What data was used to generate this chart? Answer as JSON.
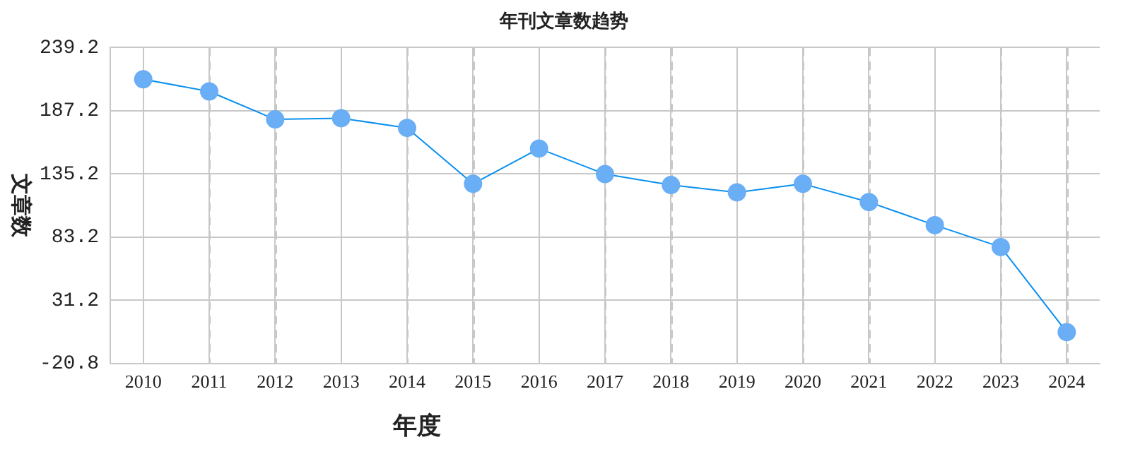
{
  "chart_data": {
    "type": "line",
    "title": "年刊文章数趋势",
    "xlabel": "年度",
    "ylabel": "文章数",
    "categories": [
      "2010",
      "2011",
      "2012",
      "2013",
      "2014",
      "2015",
      "2016",
      "2017",
      "2018",
      "2019",
      "2020",
      "2021",
      "2022",
      "2023",
      "2024"
    ],
    "series": [
      {
        "color": "#6aaef5",
        "values": [
          213,
          203,
          180,
          181,
          173,
          127,
          156,
          135,
          126,
          120,
          127,
          112,
          93,
          75,
          5
        ]
      }
    ],
    "ylim": [
      -20.8,
      239.2
    ],
    "yticks": [
      {
        "value": -20.8,
        "label": "-20.8"
      },
      {
        "value": 31.2,
        "label": "31.2"
      },
      {
        "value": 83.2,
        "label": "83.2"
      },
      {
        "value": 135.2,
        "label": "135.2"
      },
      {
        "value": 187.2,
        "label": "187.2"
      },
      {
        "value": 239.2,
        "label": "239.2"
      }
    ],
    "grid": true,
    "legend": false,
    "marker": "circle",
    "line_style": "solid"
  }
}
